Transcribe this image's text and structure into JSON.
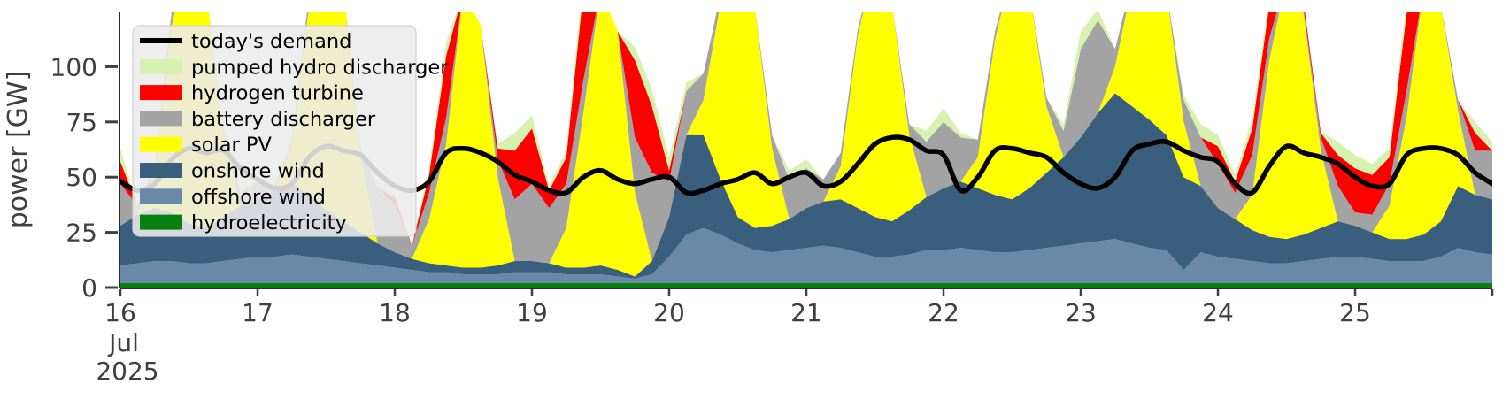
{
  "figure": {
    "ylabel": "power [GW]",
    "month_label": "Jul",
    "year_label": "2025",
    "background": "#ffffff",
    "tick_color": "#3f3f3f",
    "spine_color": "#2a2a2a"
  },
  "legend": {
    "background": "rgba(236,236,236,0.88)",
    "border": "#d0d0d0",
    "entries": [
      {
        "label": "today's demand",
        "swatch": "line",
        "color": "#000000"
      },
      {
        "label": "pumped hydro discharger",
        "swatch": "patch",
        "color": "#d7f2b0"
      },
      {
        "label": "hydrogen turbine",
        "swatch": "patch",
        "color": "#ff0000"
      },
      {
        "label": "battery discharger",
        "swatch": "patch",
        "color": "#a3a3a3"
      },
      {
        "label": "solar PV",
        "swatch": "patch",
        "color": "#ffff00"
      },
      {
        "label": "onshore wind",
        "swatch": "patch",
        "color": "#3a5e7e"
      },
      {
        "label": "offshore wind",
        "swatch": "patch",
        "color": "#6989a9"
      },
      {
        "label": "hydroelectricity",
        "swatch": "patch",
        "color": "#088010"
      }
    ]
  },
  "chart_data": {
    "type": "area",
    "title": "",
    "xlabel": "",
    "ylabel": "power [GW]",
    "x_start": "2025-07-16 00:00",
    "x_end": "2025-07-26 00:00",
    "x_step_hours": 3,
    "x_total_hours": 240,
    "x_tick_labels": [
      "16",
      "17",
      "18",
      "19",
      "20",
      "21",
      "22",
      "23",
      "24",
      "25"
    ],
    "x_tick_sub_labels": [
      "Jul",
      "2025"
    ],
    "y_ticks": [
      0,
      25,
      50,
      75,
      100
    ],
    "ylim": [
      0,
      125
    ],
    "grid": false,
    "legend_position": "upper-left",
    "stack_order": [
      "hydroelectricity",
      "offshore wind",
      "onshore wind",
      "solar PV",
      "battery discharger",
      "hydrogen turbine",
      "pumped hydro discharger"
    ],
    "series": [
      {
        "name": "hydroelectricity",
        "kind": "area",
        "color": "#088010",
        "values": [
          2,
          2,
          2,
          2,
          2,
          2,
          2,
          2,
          2,
          2,
          2,
          2,
          2,
          2,
          2,
          2,
          2,
          2,
          2,
          2,
          2,
          2,
          2,
          2,
          2,
          2,
          2,
          2,
          2,
          2,
          2,
          2,
          2,
          2,
          2,
          2,
          2,
          2,
          2,
          2,
          2,
          2,
          2,
          2,
          2,
          2,
          2,
          2,
          2,
          2,
          2,
          2,
          2,
          2,
          2,
          2,
          2,
          2,
          2,
          2,
          2,
          2,
          2,
          2,
          2,
          2,
          2,
          2,
          2,
          2,
          2,
          2,
          2,
          2,
          2,
          2,
          2,
          2,
          2,
          2,
          2
        ]
      },
      {
        "name": "offshore wind",
        "kind": "area",
        "color": "#6989a9",
        "values": [
          8,
          9,
          10,
          10,
          9,
          9,
          10,
          11,
          12,
          12,
          13,
          12,
          11,
          10,
          9,
          8,
          7,
          6,
          5,
          5,
          4,
          4,
          4,
          5,
          5,
          5,
          4,
          4,
          4,
          3,
          2,
          4,
          12,
          22,
          25,
          22,
          18,
          15,
          14,
          15,
          16,
          17,
          16,
          14,
          12,
          12,
          13,
          15,
          15,
          16,
          15,
          14,
          14,
          15,
          16,
          17,
          18,
          19,
          20,
          18,
          16,
          15,
          6,
          14,
          12,
          11,
          10,
          9,
          9,
          10,
          11,
          12,
          12,
          11,
          10,
          10,
          10,
          12,
          16,
          14,
          13
        ]
      },
      {
        "name": "onshore wind",
        "kind": "area",
        "color": "#3a5e7e",
        "values": [
          18,
          22,
          24,
          22,
          18,
          16,
          20,
          24,
          26,
          30,
          32,
          28,
          22,
          18,
          14,
          10,
          7,
          5,
          4,
          3,
          3,
          3,
          4,
          5,
          5,
          4,
          3,
          3,
          4,
          3,
          1,
          6,
          18,
          45,
          42,
          25,
          12,
          10,
          12,
          14,
          18,
          20,
          22,
          20,
          18,
          16,
          20,
          24,
          28,
          30,
          28,
          26,
          24,
          28,
          34,
          40,
          48,
          58,
          66,
          62,
          58,
          52,
          42,
          30,
          22,
          18,
          14,
          12,
          11,
          12,
          14,
          16,
          14,
          12,
          10,
          10,
          12,
          16,
          28,
          26,
          25
        ]
      },
      {
        "name": "solar PV",
        "kind": "area",
        "color": "#ffff00",
        "values": [
          0,
          0,
          18,
          85,
          122,
          108,
          38,
          0,
          0,
          0,
          18,
          85,
          122,
          106,
          35,
          0,
          0,
          0,
          20,
          55,
          125,
          110,
          40,
          0,
          0,
          0,
          18,
          70,
          125,
          108,
          38,
          0,
          0,
          0,
          16,
          80,
          118,
          100,
          35,
          0,
          0,
          0,
          15,
          78,
          115,
          98,
          34,
          0,
          0,
          0,
          14,
          70,
          105,
          90,
          30,
          0,
          0,
          0,
          12,
          55,
          75,
          65,
          25,
          0,
          0,
          0,
          16,
          80,
          118,
          100,
          35,
          0,
          0,
          0,
          15,
          55,
          112,
          98,
          34,
          0,
          0
        ]
      },
      {
        "name": "battery discharger",
        "kind": "area",
        "color": "#a3a3a3",
        "values": [
          19,
          4,
          2,
          6,
          0,
          0,
          2,
          6,
          8,
          2,
          2,
          5,
          0,
          0,
          3,
          25,
          22,
          6,
          12,
          12,
          0,
          0,
          8,
          28,
          35,
          25,
          20,
          15,
          0,
          0,
          25,
          40,
          16,
          20,
          12,
          4,
          0,
          0,
          6,
          18,
          18,
          10,
          6,
          3,
          0,
          0,
          5,
          25,
          30,
          20,
          8,
          4,
          0,
          0,
          4,
          12,
          40,
          42,
          8,
          2,
          0,
          0,
          10,
          22,
          20,
          12,
          18,
          10,
          0,
          2,
          6,
          16,
          6,
          8,
          10,
          12,
          0,
          0,
          5,
          20,
          22
        ]
      },
      {
        "name": "hydrogen turbine",
        "kind": "area",
        "color": "#ff0000",
        "values": [
          10,
          0,
          0,
          0,
          0,
          0,
          0,
          0,
          0,
          0,
          0,
          0,
          0,
          0,
          0,
          0,
          3,
          0,
          8,
          28,
          0,
          0,
          5,
          22,
          25,
          8,
          12,
          40,
          0,
          0,
          35,
          30,
          5,
          0,
          0,
          0,
          0,
          0,
          0,
          0,
          0,
          0,
          0,
          0,
          0,
          0,
          0,
          0,
          0,
          0,
          0,
          0,
          0,
          0,
          0,
          0,
          0,
          0,
          0,
          0,
          0,
          0,
          0,
          0,
          8,
          5,
          12,
          15,
          0,
          3,
          2,
          14,
          20,
          18,
          12,
          35,
          0,
          0,
          0,
          8,
          0
        ]
      },
      {
        "name": "pumped hydro discharger",
        "kind": "area",
        "color": "#d7f2b0",
        "values": [
          6,
          0,
          0,
          3,
          0,
          0,
          0,
          2,
          0,
          0,
          0,
          3,
          0,
          0,
          0,
          3,
          0,
          0,
          3,
          6,
          0,
          0,
          2,
          8,
          6,
          2,
          3,
          8,
          0,
          0,
          6,
          8,
          6,
          4,
          0,
          0,
          0,
          0,
          0,
          4,
          4,
          0,
          0,
          0,
          0,
          0,
          0,
          5,
          6,
          2,
          0,
          0,
          0,
          0,
          0,
          3,
          8,
          5,
          0,
          0,
          0,
          0,
          2,
          6,
          5,
          3,
          4,
          5,
          0,
          1,
          1,
          6,
          6,
          5,
          4,
          6,
          0,
          0,
          0,
          5,
          4
        ]
      },
      {
        "name": "today's demand",
        "kind": "line",
        "color": "#000000",
        "width": 5.5,
        "values": [
          48,
          44,
          47,
          58,
          63,
          61,
          62,
          54,
          49,
          45,
          47,
          59,
          64,
          62,
          60,
          52,
          46,
          44,
          48,
          61,
          63,
          61,
          57,
          51,
          48,
          44,
          43,
          50,
          53,
          49,
          47,
          49,
          50,
          43,
          44,
          47,
          49,
          52,
          47,
          50,
          52,
          46,
          48,
          56,
          65,
          68,
          67,
          62,
          60,
          44,
          50,
          62,
          63,
          61,
          59,
          52,
          47,
          45,
          50,
          62,
          65,
          66,
          62,
          59,
          57,
          47,
          43,
          55,
          64,
          61,
          59,
          56,
          50,
          46,
          47,
          60,
          63,
          63,
          60,
          52,
          47
        ]
      }
    ]
  }
}
